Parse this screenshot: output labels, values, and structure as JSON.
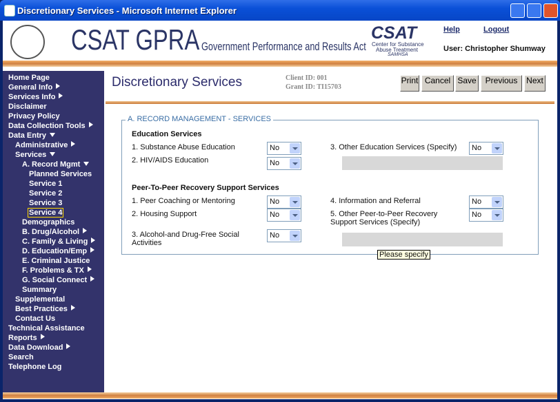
{
  "window": {
    "title": "Discretionary Services - Microsoft Internet Explorer"
  },
  "header": {
    "title": "CSAT GPRA",
    "subtitle": "Government Performance and Results Act",
    "logo_text": "CSAT",
    "logo_caption": [
      "Center for Substance",
      "Abuse Treatment"
    ],
    "logo_agency": "SAMHSA",
    "links": [
      "Help",
      "Logout"
    ],
    "user": "User: Christopher Shumway"
  },
  "nav": [
    {
      "label": "Home Page",
      "level": 0
    },
    {
      "label": "General Info",
      "level": 0,
      "arrow": "right"
    },
    {
      "label": "Services Info",
      "level": 0,
      "arrow": "right"
    },
    {
      "label": "Disclaimer",
      "level": 0
    },
    {
      "label": "Privacy Policy",
      "level": 0
    },
    {
      "label": "Data Collection Tools",
      "level": 0,
      "arrow": "right"
    },
    {
      "label": "Data Entry",
      "level": 0,
      "arrow": "down"
    },
    {
      "label": "Administrative",
      "level": 1,
      "arrow": "right"
    },
    {
      "label": "Services",
      "level": 1,
      "arrow": "down"
    },
    {
      "label": "A. Record Mgmt",
      "level": 2,
      "arrow": "down"
    },
    {
      "label": "Planned Services",
      "level": 3
    },
    {
      "label": "Service 1",
      "level": 3
    },
    {
      "label": "Service 2",
      "level": 3
    },
    {
      "label": "Service 3",
      "level": 3
    },
    {
      "label": "Service 4",
      "level": 3,
      "selected": true
    },
    {
      "label": "Demographics",
      "level": 2
    },
    {
      "label": "B. Drug/Alcohol",
      "level": 2,
      "arrow": "right"
    },
    {
      "label": "C. Family & Living",
      "level": 2,
      "arrow": "right"
    },
    {
      "label": "D. Education/Emp",
      "level": 2,
      "arrow": "right"
    },
    {
      "label": "E. Criminal Justice",
      "level": 2
    },
    {
      "label": "F. Problems & TX",
      "level": 2,
      "arrow": "right"
    },
    {
      "label": "G. Social Connect",
      "level": 2,
      "arrow": "right"
    },
    {
      "label": "Summary",
      "level": 2
    },
    {
      "label": "Supplemental",
      "level": 1
    },
    {
      "label": "Best Practices",
      "level": 1,
      "arrow": "right"
    },
    {
      "label": "Contact Us",
      "level": 1
    },
    {
      "label": "Technical Assistance",
      "level": 0
    },
    {
      "label": "Reports",
      "level": 0,
      "arrow": "right"
    },
    {
      "label": "Data Download",
      "level": 0,
      "arrow": "right"
    },
    {
      "label": "Search",
      "level": 0
    },
    {
      "label": "Telephone Log",
      "level": 0
    }
  ],
  "page": {
    "title": "Discretionary Services",
    "client_id": "Client ID: 001",
    "grant_id": "Grant ID: TI15703",
    "buttons": [
      "Print",
      "Cancel",
      "Save",
      "Previous",
      "Next"
    ]
  },
  "form": {
    "legend": "A. RECORD MANAGEMENT - SERVICES",
    "sections": [
      {
        "heading": "Education Services",
        "left": [
          {
            "label": "1. Substance Abuse Education",
            "value": "No"
          },
          {
            "label": "2. HIV/AIDS Education",
            "value": "No"
          }
        ],
        "right": [
          {
            "label": "3. Other Education Services (Specify)",
            "value": "No"
          }
        ]
      },
      {
        "heading": "Peer-To-Peer Recovery Support Services",
        "left": [
          {
            "label": "1. Peer Coaching or Mentoring",
            "value": "No"
          },
          {
            "label": "2. Housing Support",
            "value": "No"
          },
          {
            "label": "3. Alcohol-and Drug-Free Social Activities",
            "value": "No"
          }
        ],
        "right": [
          {
            "label": "4. Information and Referral",
            "value": "No"
          },
          {
            "label": "5. Other Peer-to-Peer Recovery Support Services (Specify)",
            "value": "No"
          }
        ]
      }
    ],
    "tooltip": "Please specify"
  }
}
